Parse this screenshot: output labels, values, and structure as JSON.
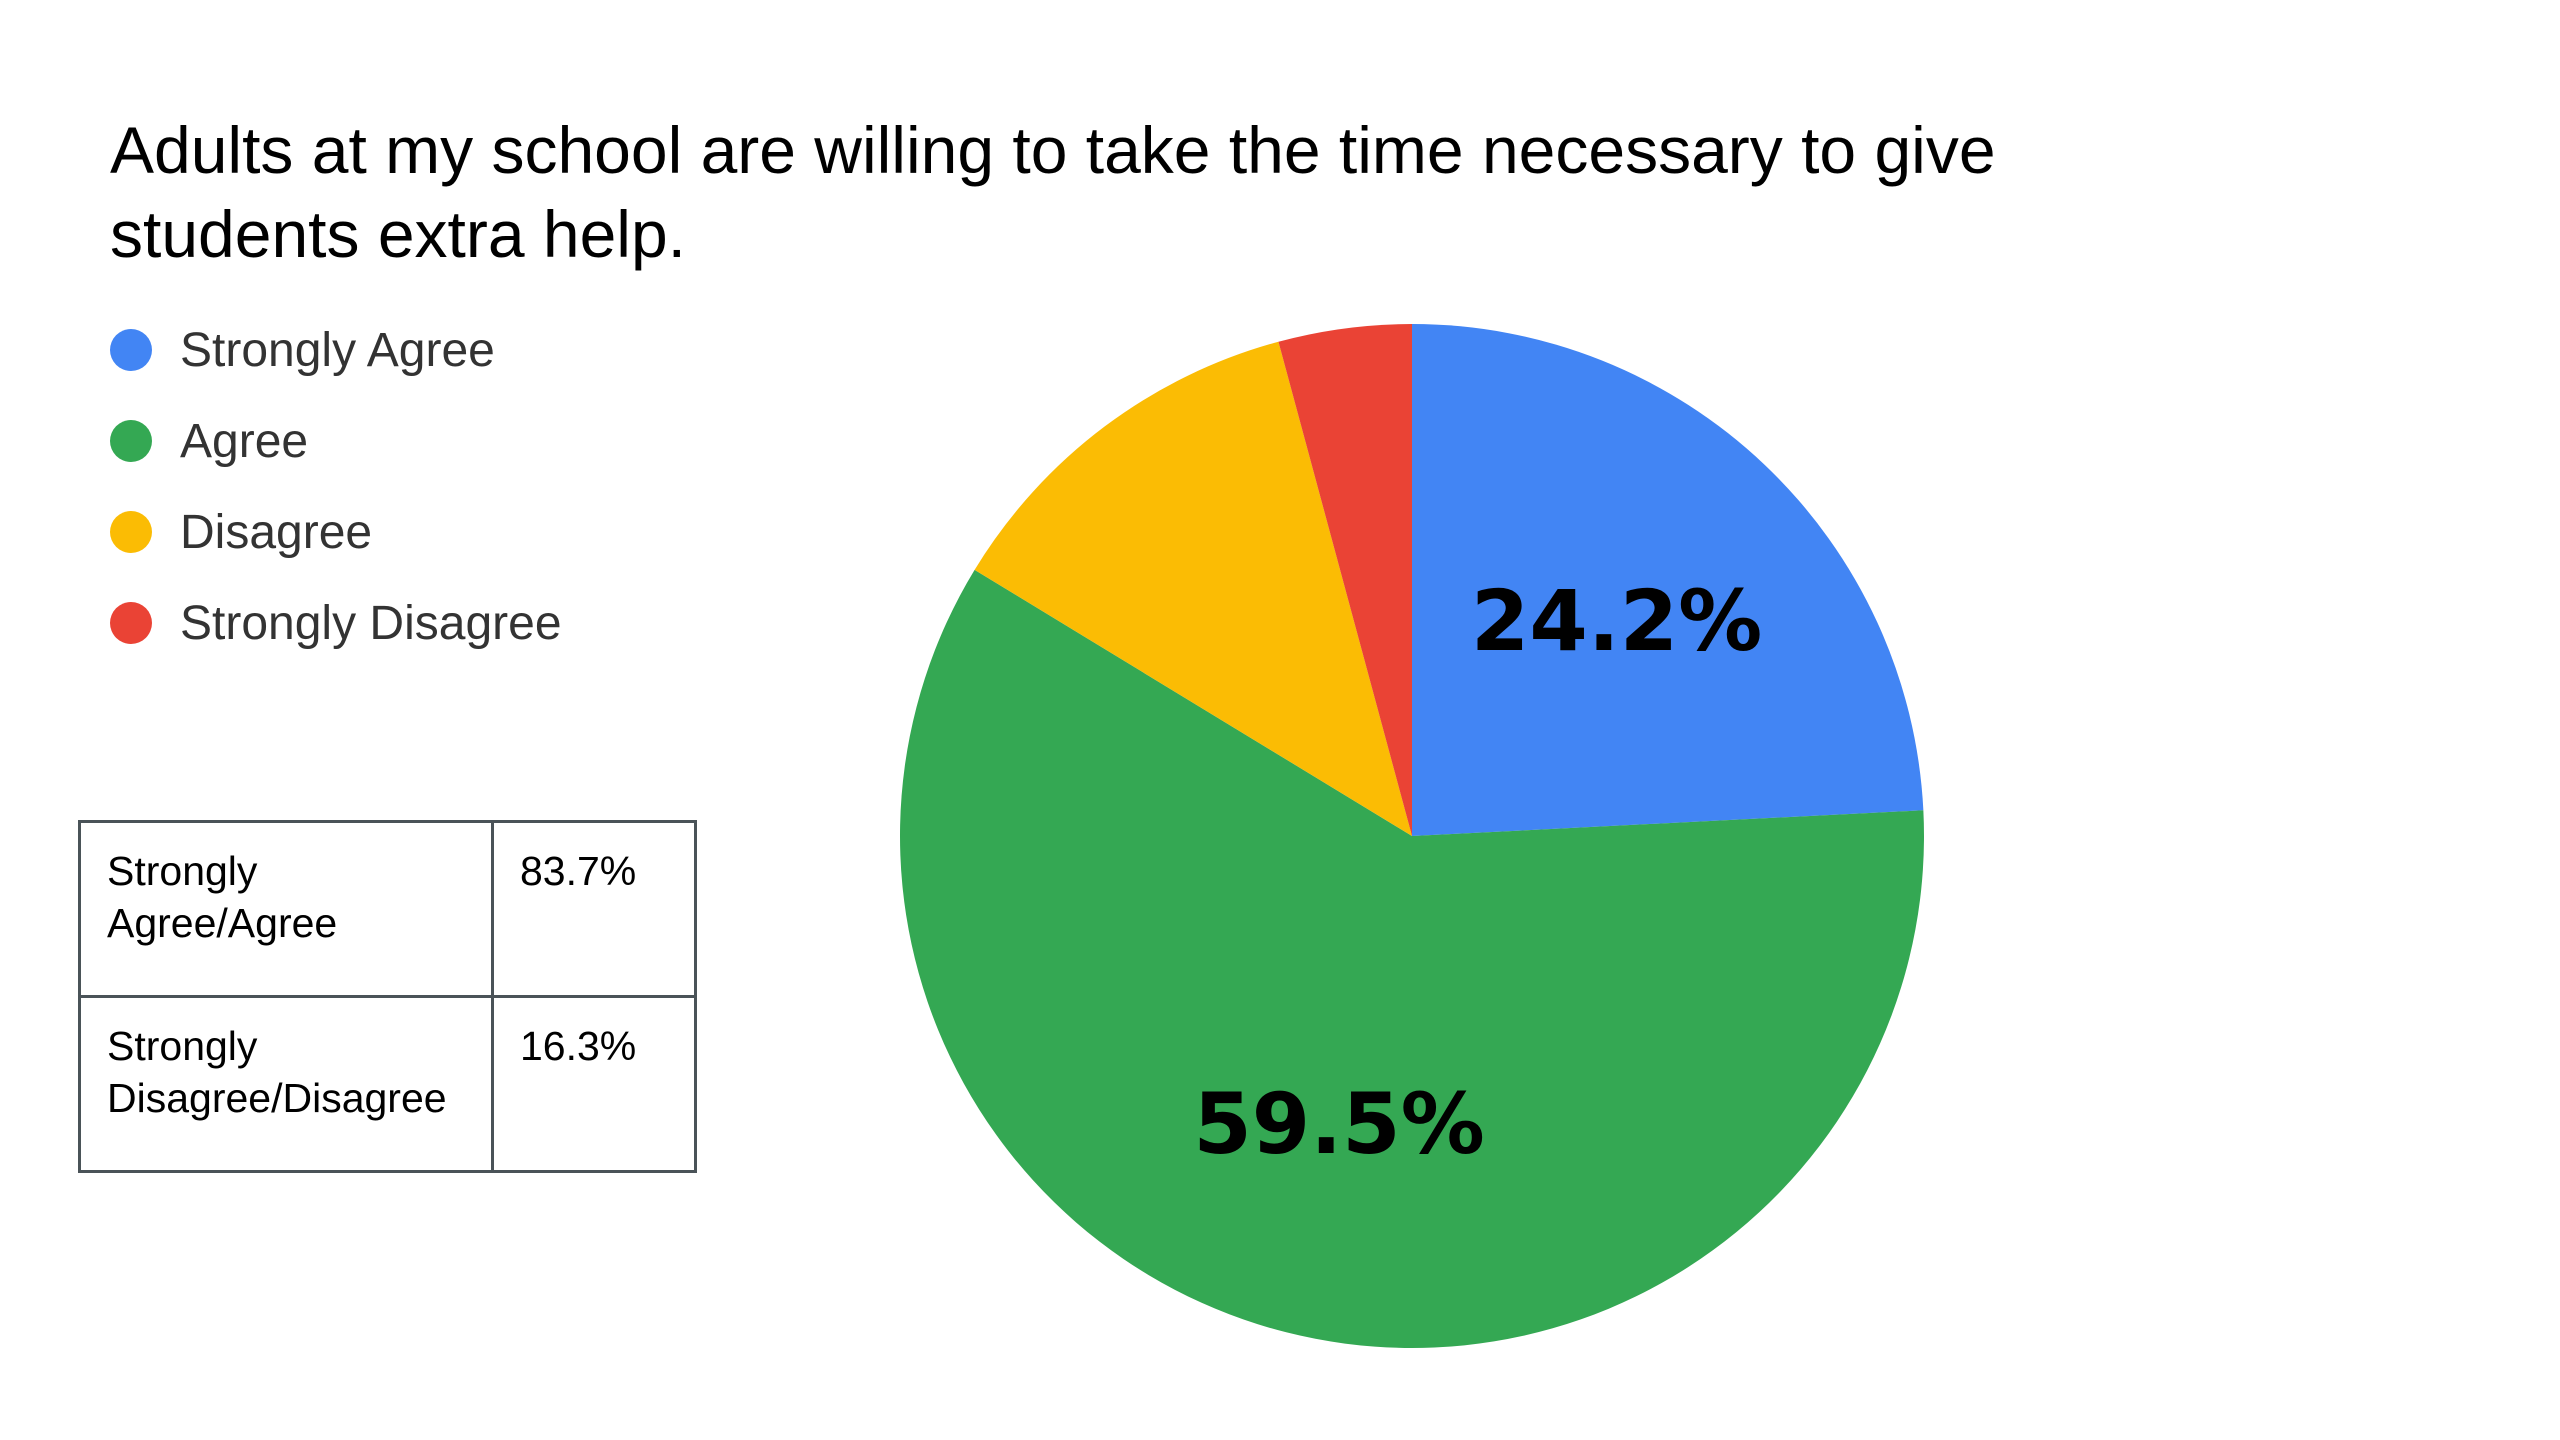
{
  "chart_data": {
    "type": "pie",
    "title": "Adults at my school are willing to take the time necessary to give students extra help.",
    "categories": [
      "Strongly Agree",
      "Agree",
      "Disagree",
      "Strongly Disagree"
    ],
    "values": [
      24.2,
      59.5,
      12.1,
      4.2
    ],
    "colors": [
      "#4285f4",
      "#34a853",
      "#fbbc04",
      "#ea4335"
    ],
    "data_labels": [
      "24.2%",
      "59.5%",
      "",
      ""
    ],
    "legend_position": "left",
    "start_angle": "12 o'clock",
    "direction": "clockwise"
  },
  "summary_table": {
    "rows": [
      {
        "label": "Strongly Agree/Agree",
        "value": "83.7%"
      },
      {
        "label": "Strongly Disagree/Disagree",
        "value": "16.3%"
      }
    ]
  }
}
